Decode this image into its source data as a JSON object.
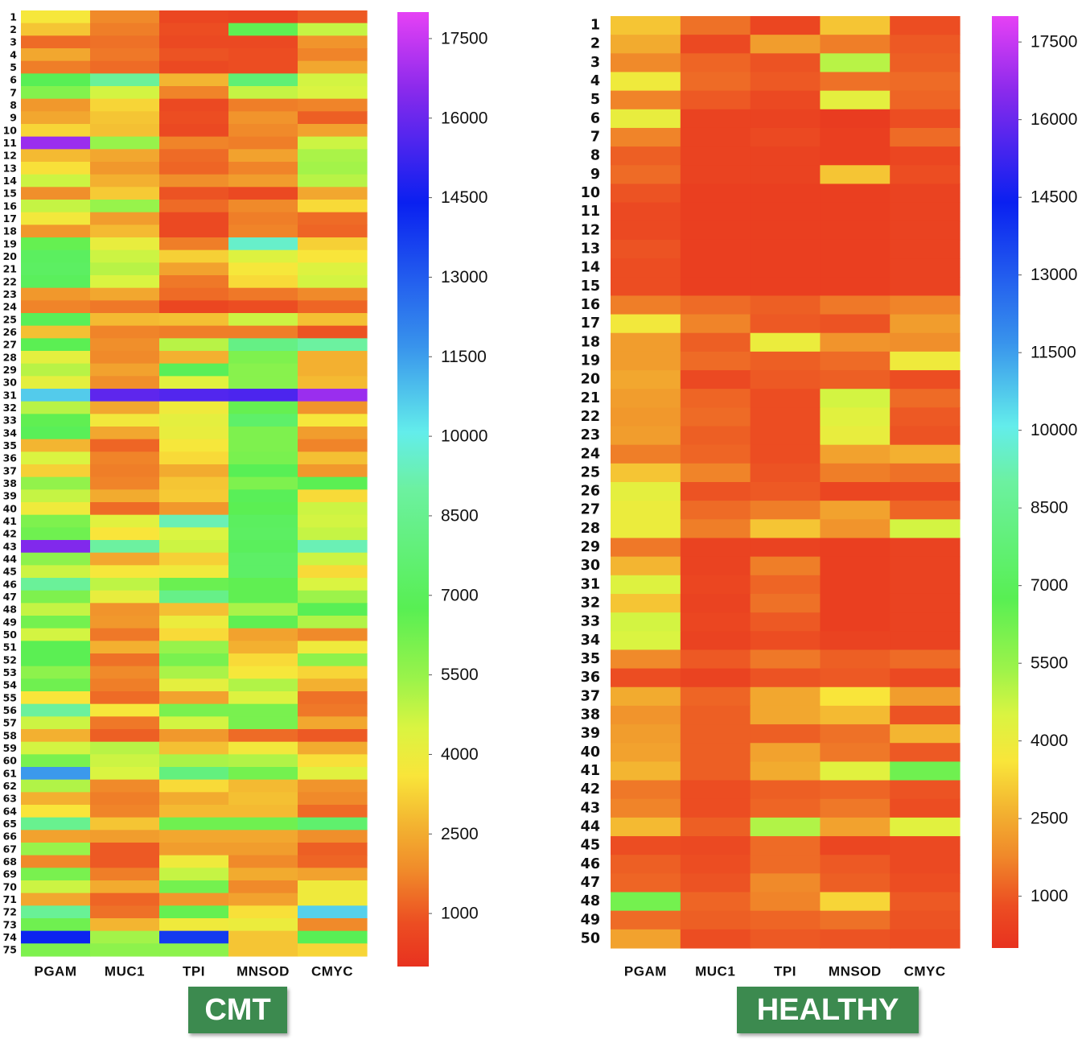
{
  "chart_data": [
    {
      "type": "heatmap",
      "title": "CMT",
      "columns": [
        "PGAM",
        "MUC1",
        "TPI",
        "MNSOD",
        "CMYC"
      ],
      "rows": [
        "1",
        "2",
        "3",
        "4",
        "5",
        "6",
        "7",
        "8",
        "9",
        "10",
        "11",
        "12",
        "13",
        "14",
        "15",
        "16",
        "17",
        "18",
        "19",
        "20",
        "21",
        "22",
        "23",
        "24",
        "25",
        "26",
        "27",
        "28",
        "29",
        "30",
        "31",
        "32",
        "33",
        "34",
        "35",
        "36",
        "37",
        "38",
        "39",
        "40",
        "41",
        "42",
        "43",
        "44",
        "45",
        "46",
        "47",
        "48",
        "49",
        "50",
        "51",
        "52",
        "53",
        "54",
        "55",
        "56",
        "57",
        "58",
        "59",
        "60",
        "61",
        "62",
        "63",
        "64",
        "65",
        "66",
        "67",
        "68",
        "69",
        "70",
        "71",
        "72",
        "73",
        "74",
        "75"
      ],
      "values": [
        [
          3700,
          1800,
          600,
          500,
          1000
        ],
        [
          3000,
          1600,
          800,
          6600,
          4800
        ],
        [
          1300,
          1400,
          700,
          700,
          2000
        ],
        [
          2400,
          1500,
          900,
          800,
          1700
        ],
        [
          1600,
          1300,
          700,
          800,
          2400
        ],
        [
          6800,
          8800,
          2700,
          7700,
          4600
        ],
        [
          5900,
          4600,
          1700,
          4800,
          4500
        ],
        [
          2100,
          3300,
          700,
          1600,
          1700
        ],
        [
          2400,
          3000,
          800,
          2000,
          1100
        ],
        [
          3300,
          2900,
          700,
          1800,
          2300
        ],
        [
          16800,
          5500,
          1700,
          1600,
          4700
        ],
        [
          2800,
          2400,
          1300,
          2300,
          5200
        ],
        [
          3500,
          2100,
          1200,
          1700,
          5300
        ],
        [
          4700,
          2600,
          1900,
          2200,
          5000
        ],
        [
          1900,
          3100,
          900,
          700,
          2400
        ],
        [
          4800,
          5500,
          1300,
          1800,
          3400
        ],
        [
          3800,
          2200,
          700,
          1600,
          1300
        ],
        [
          2100,
          2800,
          700,
          1700,
          1200
        ],
        [
          6500,
          4100,
          1600,
          9600,
          3200
        ],
        [
          7100,
          4700,
          3200,
          4400,
          3600
        ],
        [
          7200,
          5000,
          2300,
          3700,
          4400
        ],
        [
          7000,
          4500,
          1500,
          3400,
          4600
        ],
        [
          2100,
          2400,
          1300,
          1500,
          1800
        ],
        [
          1700,
          1500,
          600,
          800,
          1200
        ],
        [
          6900,
          2800,
          2900,
          4700,
          2900
        ],
        [
          2900,
          1700,
          1600,
          1600,
          900
        ],
        [
          6700,
          1900,
          5000,
          8200,
          9000
        ],
        [
          4200,
          1800,
          2600,
          6000,
          2600
        ],
        [
          5000,
          2300,
          6900,
          5800,
          2600
        ],
        [
          4200,
          1900,
          4300,
          5800,
          2800
        ],
        [
          10700,
          15800,
          15600,
          15500,
          16800
        ],
        [
          5000,
          2400,
          3900,
          6500,
          2000
        ],
        [
          6600,
          3800,
          4200,
          7400,
          3700
        ],
        [
          6900,
          2400,
          4100,
          6000,
          2200
        ],
        [
          2700,
          1200,
          3700,
          6000,
          1700
        ],
        [
          4500,
          1700,
          3400,
          6100,
          2900
        ],
        [
          3200,
          1600,
          2500,
          6800,
          2100
        ],
        [
          5600,
          1700,
          3000,
          6000,
          6700
        ],
        [
          4800,
          2500,
          3100,
          6900,
          3400
        ],
        [
          3900,
          1300,
          2100,
          6700,
          4700
        ],
        [
          6000,
          4300,
          9300,
          7100,
          4600
        ],
        [
          6300,
          3600,
          4500,
          7200,
          4800
        ],
        [
          16400,
          9000,
          4700,
          7000,
          9300
        ],
        [
          5700,
          2400,
          3200,
          7300,
          4700
        ],
        [
          4700,
          3700,
          3900,
          7300,
          3400
        ],
        [
          8800,
          4900,
          6400,
          6600,
          4500
        ],
        [
          6000,
          4100,
          8300,
          6600,
          5400
        ],
        [
          4800,
          2000,
          2900,
          5200,
          6800
        ],
        [
          6200,
          2100,
          4000,
          6600,
          5100
        ],
        [
          4600,
          1500,
          3400,
          2300,
          1800
        ],
        [
          6700,
          2600,
          5500,
          2600,
          3900
        ],
        [
          6700,
          1400,
          6100,
          3400,
          5700
        ],
        [
          5700,
          1800,
          5200,
          3700,
          3300
        ],
        [
          6300,
          1600,
          4200,
          5100,
          2600
        ],
        [
          3600,
          1300,
          2300,
          4400,
          1400
        ],
        [
          8900,
          3700,
          6100,
          6100,
          1500
        ],
        [
          4700,
          1500,
          4600,
          6100,
          2400
        ],
        [
          2600,
          1100,
          2100,
          1300,
          1000
        ],
        [
          4600,
          5000,
          2900,
          3800,
          2500
        ],
        [
          6100,
          4700,
          5200,
          5100,
          3500
        ],
        [
          11600,
          4500,
          8000,
          6200,
          4300
        ],
        [
          5100,
          1800,
          3400,
          2800,
          2000
        ],
        [
          2600,
          1600,
          2500,
          2900,
          1800
        ],
        [
          3600,
          1700,
          2800,
          2800,
          1300
        ],
        [
          8500,
          3000,
          6300,
          6300,
          7500
        ],
        [
          2300,
          2200,
          2400,
          2400,
          1900
        ],
        [
          5500,
          1000,
          2200,
          2200,
          1100
        ],
        [
          1800,
          1000,
          3900,
          1800,
          1200
        ],
        [
          6100,
          1600,
          4800,
          2500,
          2300
        ],
        [
          4700,
          2500,
          6200,
          1800,
          3900
        ],
        [
          2400,
          1200,
          2100,
          2300,
          3900
        ],
        [
          8700,
          1400,
          6500,
          3500,
          10600
        ],
        [
          6300,
          2700,
          3900,
          4000,
          1800
        ],
        [
          14300,
          5300,
          13800,
          3000,
          6800
        ],
        [
          6000,
          5700,
          5700,
          3000,
          3300
        ]
      ],
      "colorbar": {
        "min": 0,
        "max": 18000,
        "ticks": [
          1000,
          2500,
          4000,
          5500,
          7000,
          8500,
          10000,
          11500,
          13000,
          14500,
          16000,
          17500
        ],
        "tick_labels": [
          "1000",
          "2500",
          "4000",
          "5500",
          "7000",
          "8500",
          "10000",
          "11500",
          "13000",
          "14500",
          "16000",
          "17500"
        ]
      }
    },
    {
      "type": "heatmap",
      "title": "HEALTHY",
      "columns": [
        "PGAM",
        "MUC1",
        "TPI",
        "MNSOD",
        "CMYC"
      ],
      "rows": [
        "1",
        "2",
        "3",
        "4",
        "5",
        "6",
        "7",
        "8",
        "9",
        "10",
        "11",
        "12",
        "13",
        "14",
        "15",
        "16",
        "17",
        "18",
        "19",
        "20",
        "21",
        "22",
        "23",
        "24",
        "25",
        "26",
        "27",
        "28",
        "29",
        "30",
        "31",
        "32",
        "33",
        "34",
        "35",
        "36",
        "37",
        "38",
        "39",
        "40",
        "41",
        "42",
        "43",
        "44",
        "45",
        "46",
        "47",
        "48",
        "49",
        "50"
      ],
      "values": [
        [
          3000,
          1400,
          600,
          3000,
          800
        ],
        [
          2500,
          700,
          2200,
          1600,
          1000
        ],
        [
          1800,
          1200,
          900,
          5000,
          1100
        ],
        [
          3900,
          1300,
          1000,
          1400,
          1300
        ],
        [
          1700,
          1000,
          700,
          4200,
          1200
        ],
        [
          4100,
          500,
          500,
          300,
          800
        ],
        [
          1700,
          500,
          700,
          400,
          1300
        ],
        [
          1100,
          500,
          500,
          400,
          600
        ],
        [
          1300,
          500,
          500,
          3000,
          800
        ],
        [
          900,
          400,
          400,
          400,
          500
        ],
        [
          700,
          400,
          400,
          400,
          500
        ],
        [
          700,
          400,
          400,
          400,
          500
        ],
        [
          900,
          400,
          400,
          400,
          500
        ],
        [
          800,
          400,
          400,
          400,
          500
        ],
        [
          800,
          400,
          400,
          400,
          500
        ],
        [
          1600,
          1300,
          1100,
          1500,
          1700
        ],
        [
          3800,
          1700,
          1000,
          900,
          2200
        ],
        [
          2200,
          1100,
          4000,
          2000,
          1900
        ],
        [
          2200,
          1300,
          1100,
          1300,
          3900
        ],
        [
          2400,
          700,
          1000,
          1100,
          800
        ],
        [
          2200,
          1200,
          800,
          4600,
          1300
        ],
        [
          2100,
          1300,
          800,
          4300,
          1000
        ],
        [
          2200,
          1100,
          800,
          4100,
          900
        ],
        [
          1600,
          1200,
          800,
          2300,
          2600
        ],
        [
          3000,
          1700,
          900,
          1600,
          1400
        ],
        [
          4200,
          900,
          1000,
          600,
          700
        ],
        [
          4000,
          1300,
          1600,
          2300,
          1200
        ],
        [
          4000,
          1600,
          3000,
          2000,
          4600
        ],
        [
          1500,
          500,
          500,
          400,
          500
        ],
        [
          2700,
          500,
          1600,
          400,
          500
        ],
        [
          4400,
          600,
          1200,
          400,
          500
        ],
        [
          3000,
          500,
          1400,
          400,
          500
        ],
        [
          4600,
          600,
          1000,
          400,
          500
        ],
        [
          4500,
          500,
          800,
          500,
          500
        ],
        [
          1800,
          1000,
          1500,
          1100,
          1300
        ],
        [
          800,
          500,
          900,
          1000,
          700
        ],
        [
          2500,
          1200,
          2400,
          3600,
          2200
        ],
        [
          2000,
          1100,
          2400,
          2800,
          900
        ],
        [
          2200,
          1100,
          1100,
          1400,
          2700
        ],
        [
          2300,
          1100,
          2300,
          1500,
          1000
        ],
        [
          2700,
          1100,
          2500,
          4300,
          6300
        ],
        [
          1500,
          800,
          1100,
          1200,
          900
        ],
        [
          1700,
          800,
          1200,
          1500,
          800
        ],
        [
          2800,
          1100,
          5100,
          2300,
          4300
        ],
        [
          800,
          700,
          1300,
          600,
          700
        ],
        [
          1100,
          800,
          1300,
          1000,
          700
        ],
        [
          1200,
          900,
          1800,
          1100,
          800
        ],
        [
          6200,
          1200,
          1700,
          3300,
          1000
        ],
        [
          1300,
          1100,
          1200,
          1400,
          900
        ],
        [
          2300,
          800,
          1000,
          900,
          800
        ]
      ],
      "colorbar": {
        "min": 0,
        "max": 18000,
        "ticks": [
          1000,
          2500,
          4000,
          5500,
          7000,
          8500,
          10000,
          11500,
          13000,
          14500,
          16000,
          17500
        ],
        "tick_labels": [
          "1000",
          "2500",
          "4000",
          "5500",
          "7000",
          "8500",
          "10000",
          "11500",
          "13000",
          "14500",
          "16000",
          "17500"
        ]
      }
    }
  ],
  "labels": {
    "cmt": "CMT",
    "healthy": "HEALTHY"
  },
  "colorscale": [
    [
      0,
      "#e8321f"
    ],
    [
      0.045,
      "#ec4d22"
    ],
    [
      0.1,
      "#f08a2a"
    ],
    [
      0.15,
      "#f3b531"
    ],
    [
      0.2,
      "#f9e53a"
    ],
    [
      0.25,
      "#daf441"
    ],
    [
      0.3,
      "#9cf34a"
    ],
    [
      0.375,
      "#58ef53"
    ],
    [
      0.5,
      "#6cf1a0"
    ],
    [
      0.56,
      "#63edeb"
    ],
    [
      0.65,
      "#3893ec"
    ],
    [
      0.8,
      "#0a20f0"
    ],
    [
      0.92,
      "#8b2aec"
    ],
    [
      1.0,
      "#e641f5"
    ]
  ]
}
